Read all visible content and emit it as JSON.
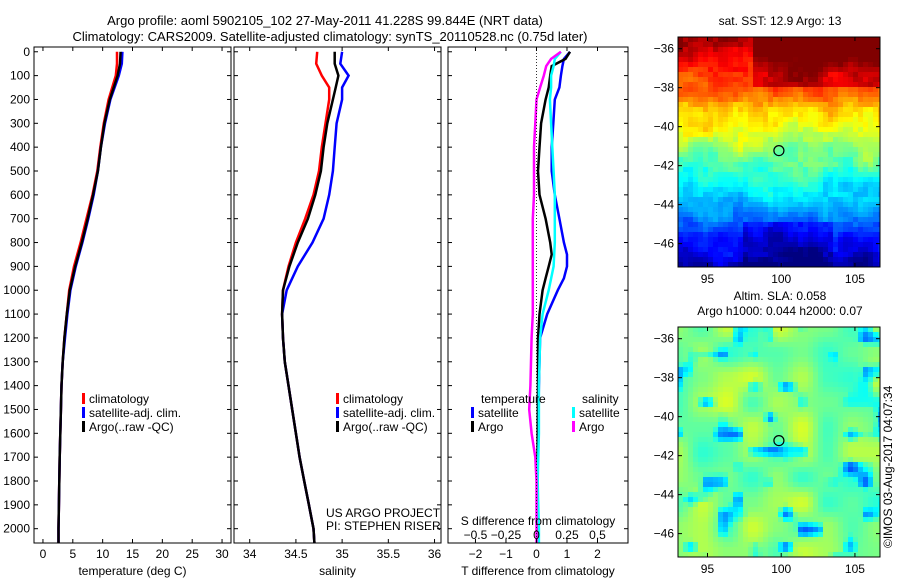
{
  "header": {
    "title_line1": "Argo profile: aoml 5902105_102 27-May-2011 41.228S 99.844E (NRT data)",
    "title_line2": "Climatology: CARS2009. Satellite-adjusted climatology: synTS_20110528.nc (0.75d later)"
  },
  "colors": {
    "climatology": "#ff0000",
    "satellite": "#0000ff",
    "argo": "#000000",
    "sal_satellite": "#00ffff",
    "sal_argo": "#ff00ff"
  },
  "depth_axis": {
    "ticks": [
      0,
      100,
      200,
      300,
      400,
      500,
      600,
      700,
      800,
      900,
      1000,
      1100,
      1200,
      1300,
      1400,
      1500,
      1600,
      1700,
      1800,
      1900,
      2000
    ],
    "range": [
      -20,
      2060
    ]
  },
  "chart_data": [
    {
      "type": "line",
      "xlabel": "temperature (deg C)",
      "xlim": [
        -1.5,
        31.5
      ],
      "xticks": [
        0,
        5,
        10,
        15,
        20,
        25,
        30
      ],
      "legend": [
        "climatology",
        "satellite-adj. clim.",
        "Argo(..raw -QC)"
      ],
      "series": [
        {
          "name": "climatology",
          "color": "#ff0000",
          "depth": [
            0,
            50,
            100,
            200,
            300,
            400,
            500,
            600,
            700,
            800,
            900,
            1000,
            1100,
            1200,
            1300,
            1400,
            1500,
            1700,
            2000,
            2060
          ],
          "values": [
            12.4,
            12.4,
            12.2,
            11.0,
            10.2,
            9.6,
            9.1,
            8.3,
            7.3,
            6.3,
            5.2,
            4.4,
            4.0,
            3.6,
            3.3,
            3.1,
            3.0,
            2.8,
            2.6,
            2.6
          ]
        },
        {
          "name": "satellite-adj. clim.",
          "color": "#0000ff",
          "depth": [
            0,
            50,
            100,
            200,
            300,
            400,
            500,
            600,
            700,
            800,
            900,
            1000,
            1100,
            1200,
            1300,
            1400,
            1500,
            1700,
            2000,
            2060
          ],
          "values": [
            13.3,
            13.2,
            12.7,
            11.3,
            10.4,
            9.7,
            9.2,
            8.5,
            7.6,
            6.6,
            5.5,
            4.6,
            4.1,
            3.7,
            3.3,
            3.1,
            3.0,
            2.8,
            2.6,
            2.6
          ]
        },
        {
          "name": "Argo(..raw -QC)",
          "color": "#000000",
          "depth": [
            0,
            50,
            100,
            200,
            300,
            400,
            500,
            600,
            700,
            800,
            900,
            1000,
            1100,
            1200,
            1300,
            1400,
            1500,
            1700,
            2000,
            2060
          ],
          "values": [
            13.0,
            12.9,
            12.5,
            11.2,
            10.3,
            9.7,
            9.2,
            8.4,
            7.5,
            6.5,
            5.4,
            4.5,
            4.0,
            3.6,
            3.3,
            3.1,
            3.0,
            2.8,
            2.6,
            2.6
          ]
        }
      ]
    },
    {
      "type": "line",
      "xlabel": "salinity",
      "xlim": [
        33.83,
        36.07
      ],
      "xticks": [
        34,
        34.5,
        35,
        35.5,
        36
      ],
      "legend": [
        "climatology",
        "satellite-adj. clim.",
        "Argo(..raw -QC)"
      ],
      "series": [
        {
          "name": "climatology",
          "color": "#ff0000",
          "depth": [
            0,
            50,
            100,
            150,
            200,
            300,
            400,
            500,
            600,
            700,
            800,
            900,
            1000,
            1100,
            1200,
            1300,
            1400,
            1500,
            1600,
            1700,
            1800,
            1900,
            2000,
            2060
          ],
          "values": [
            34.73,
            34.72,
            34.78,
            34.86,
            34.86,
            34.82,
            34.78,
            34.75,
            34.69,
            34.6,
            34.5,
            34.42,
            34.36,
            34.35,
            34.36,
            34.38,
            34.42,
            34.46,
            34.5,
            34.54,
            34.59,
            34.64,
            34.69,
            34.7
          ]
        },
        {
          "name": "satellite-adj. clim.",
          "color": "#0000ff",
          "depth": [
            0,
            50,
            100,
            150,
            200,
            300,
            400,
            500,
            600,
            700,
            800,
            900,
            1000,
            1100,
            1200,
            1300,
            1400,
            1500,
            1600,
            1700,
            1800,
            1900,
            2000,
            2060
          ],
          "values": [
            35.0,
            34.98,
            35.07,
            35.0,
            35.0,
            34.94,
            34.92,
            34.9,
            34.86,
            34.8,
            34.68,
            34.52,
            34.4,
            34.35,
            34.36,
            34.38,
            34.42,
            34.46,
            34.5,
            34.54,
            34.59,
            34.64,
            34.69,
            34.7
          ]
        },
        {
          "name": "Argo(..raw -QC)",
          "color": "#000000",
          "depth": [
            0,
            50,
            100,
            150,
            200,
            300,
            400,
            500,
            600,
            700,
            800,
            900,
            1000,
            1100,
            1200,
            1300,
            1400,
            1500,
            1600,
            1700,
            1800,
            1900,
            2000,
            2060
          ],
          "values": [
            34.92,
            34.92,
            34.96,
            34.93,
            34.9,
            34.84,
            34.8,
            34.77,
            34.71,
            34.63,
            34.52,
            34.43,
            34.36,
            34.35,
            34.36,
            34.38,
            34.42,
            34.46,
            34.5,
            34.54,
            34.59,
            34.64,
            34.69,
            34.7
          ]
        }
      ],
      "annotation": [
        "US ARGO PROJECT",
        "PI: STEPHEN RISER"
      ]
    },
    {
      "type": "line",
      "xlabel": "T difference from climatology",
      "xlim": [
        -2.9,
        3.0
      ],
      "xticks": [
        -2,
        -1,
        0,
        1,
        2
      ],
      "secondary_xlabel": "S difference from climatology",
      "secondary_xticks": [
        -0.5,
        -0.25,
        0,
        0.25,
        0.5
      ],
      "s_to_t_scale": 4,
      "legend_titles": [
        "temperature",
        "salinity"
      ],
      "legend": [
        {
          "group": "temperature",
          "label": "satellite",
          "color": "#0000ff"
        },
        {
          "group": "temperature",
          "label": "Argo",
          "color": "#000000"
        },
        {
          "group": "salinity",
          "label": "satellite",
          "color": "#00ffff"
        },
        {
          "group": "salinity",
          "label": "Argo",
          "color": "#ff00ff"
        }
      ],
      "series": [
        {
          "name": "T satellite",
          "unit": "T",
          "color": "#0000ff",
          "depth": [
            0,
            30,
            60,
            100,
            150,
            200,
            300,
            400,
            500,
            600,
            700,
            800,
            850,
            900,
            950,
            1000,
            1100,
            1200,
            1400,
            1600,
            1800,
            2000,
            2060
          ],
          "values": [
            1.1,
            0.9,
            0.85,
            0.8,
            0.75,
            0.6,
            0.55,
            0.5,
            0.5,
            0.6,
            0.75,
            0.9,
            1.0,
            1.0,
            0.9,
            0.7,
            0.35,
            0.12,
            0.08,
            0.05,
            0.03,
            0.02,
            0.02
          ]
        },
        {
          "name": "T Argo",
          "unit": "T",
          "color": "#000000",
          "depth": [
            0,
            30,
            60,
            100,
            150,
            200,
            300,
            400,
            500,
            600,
            700,
            800,
            850,
            900,
            950,
            1000,
            1100,
            1200,
            1400,
            1600,
            1800,
            2000,
            2060
          ],
          "values": [
            1.1,
            0.95,
            0.5,
            0.45,
            0.4,
            0.3,
            0.15,
            0.1,
            0.05,
            0.1,
            0.3,
            0.45,
            0.5,
            0.4,
            0.3,
            0.2,
            0.1,
            0.05,
            0.05,
            0.04,
            0.03,
            0.02,
            0.02
          ]
        },
        {
          "name": "S satellite",
          "unit": "S",
          "color": "#00ffff",
          "depth": [
            0,
            30,
            60,
            100,
            150,
            200,
            300,
            400,
            500,
            600,
            700,
            800,
            900,
            1000,
            1100,
            1200,
            1400,
            1600,
            1800,
            2000,
            2060
          ],
          "values": [
            0.2,
            0.15,
            0.14,
            0.12,
            0.12,
            0.11,
            0.12,
            0.13,
            0.14,
            0.15,
            0.15,
            0.15,
            0.14,
            0.1,
            0.05,
            0.03,
            0.02,
            0.02,
            0.01,
            0.02,
            0.02
          ]
        },
        {
          "name": "S Argo",
          "unit": "S",
          "color": "#ff00ff",
          "depth": [
            0,
            30,
            60,
            100,
            150,
            200,
            300,
            400,
            500,
            600,
            700,
            800,
            900,
            1000,
            1100,
            1200,
            1400,
            1500,
            1600,
            1700,
            1800,
            2000,
            2060
          ],
          "values": [
            0.2,
            0.12,
            0.08,
            0.06,
            0.03,
            0.0,
            -0.01,
            -0.02,
            -0.02,
            -0.02,
            -0.03,
            -0.03,
            -0.03,
            -0.03,
            -0.03,
            -0.04,
            -0.05,
            -0.06,
            -0.04,
            -0.01,
            0.0,
            0.0,
            0.0
          ]
        }
      ]
    },
    {
      "type": "heatmap",
      "title": "sat. SST: 12.9 Argo: 13",
      "xlim": [
        93.0,
        106.7
      ],
      "ylim": [
        -47.2,
        -35.4
      ],
      "xticks": [
        95,
        100,
        105
      ],
      "yticks": [
        -36,
        -38,
        -40,
        -42,
        -44,
        -46
      ],
      "marker": {
        "lon": 99.844,
        "lat": -41.228
      }
    },
    {
      "type": "heatmap",
      "title_line1": "Altim. SLA: 0.058",
      "title_line2": "Argo h1000: 0.044 h2000: 0.07",
      "xlim": [
        93.0,
        106.7
      ],
      "ylim": [
        -47.2,
        -35.4
      ],
      "xticks": [
        95,
        100,
        105
      ],
      "yticks": [
        -36,
        -38,
        -40,
        -42,
        -44,
        -46
      ],
      "marker": {
        "lon": 99.844,
        "lat": -41.228
      }
    }
  ],
  "footer": {
    "credit": "©IMOS 03-Aug-2017 04:07:34"
  }
}
